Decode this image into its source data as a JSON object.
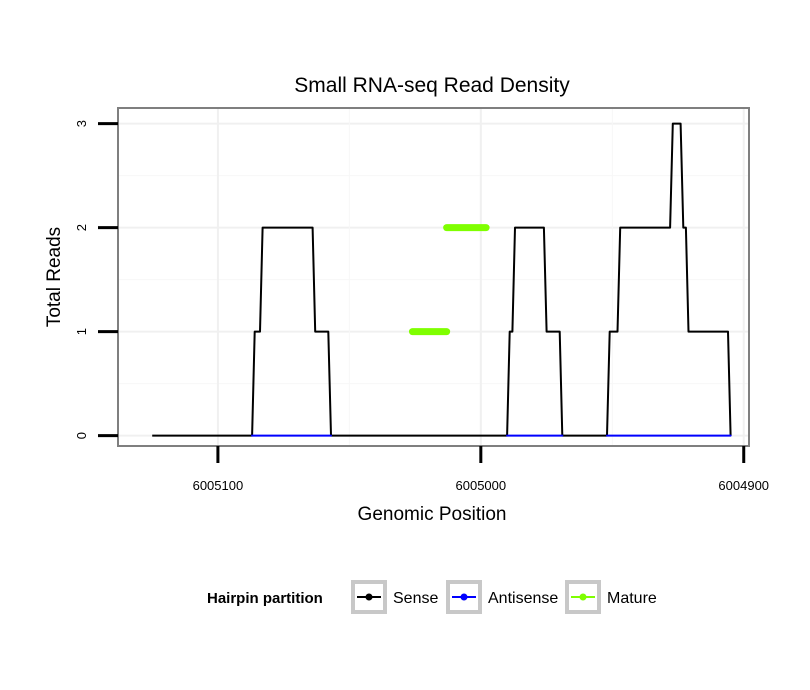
{
  "chart_data": {
    "type": "line",
    "title": "Small RNA-seq Read Density",
    "xlabel": "Genomic Position",
    "ylabel": "Total Reads",
    "xlim": [
      6005138,
      6004898
    ],
    "ylim": [
      -0.1,
      3.15
    ],
    "x_reversed": true,
    "x_ticks": [
      6005100,
      6005000,
      6004900
    ],
    "x_tick_labels": [
      "6005100",
      "6005000",
      "6004900"
    ],
    "y_ticks": [
      0,
      1,
      2,
      3
    ],
    "y_tick_labels": [
      "0",
      "1",
      "2",
      "3"
    ],
    "grid": true,
    "legend_position": "bottom",
    "legend_title": "Hairpin partition",
    "series": [
      {
        "name": "Sense",
        "color": "#000000",
        "points": [
          [
            6005125,
            0
          ],
          [
            6005087,
            0
          ],
          [
            6005086,
            1
          ],
          [
            6005084,
            1
          ],
          [
            6005083,
            2
          ],
          [
            6005064,
            2
          ],
          [
            6005063,
            1
          ],
          [
            6005058,
            1
          ],
          [
            6005057,
            0
          ],
          [
            6004990,
            0
          ],
          [
            6004989,
            1
          ],
          [
            6004988,
            1
          ],
          [
            6004987,
            2
          ],
          [
            6004976,
            2
          ],
          [
            6004975,
            1
          ],
          [
            6004970,
            1
          ],
          [
            6004969,
            0
          ],
          [
            6004952,
            0
          ],
          [
            6004951,
            1
          ],
          [
            6004948,
            1
          ],
          [
            6004947,
            2
          ],
          [
            6004928,
            2
          ],
          [
            6004927,
            3
          ],
          [
            6004924,
            3
          ],
          [
            6004923,
            2
          ],
          [
            6004922,
            2
          ],
          [
            6004921,
            1
          ],
          [
            6004906,
            1
          ],
          [
            6004905,
            0
          ]
        ]
      },
      {
        "name": "Antisense",
        "color": "#0000ff",
        "points": [
          [
            6005087,
            0
          ],
          [
            6005057,
            0
          ],
          [
            6004990,
            0
          ],
          [
            6004969,
            0
          ],
          [
            6004952,
            0
          ],
          [
            6004905,
            0
          ]
        ]
      },
      {
        "name": "Mature",
        "color": "#7fff00",
        "points": [
          [
            6005026,
            1
          ],
          [
            6005013,
            1
          ],
          [
            6005013,
            2
          ],
          [
            6004998,
            2
          ]
        ]
      }
    ]
  }
}
